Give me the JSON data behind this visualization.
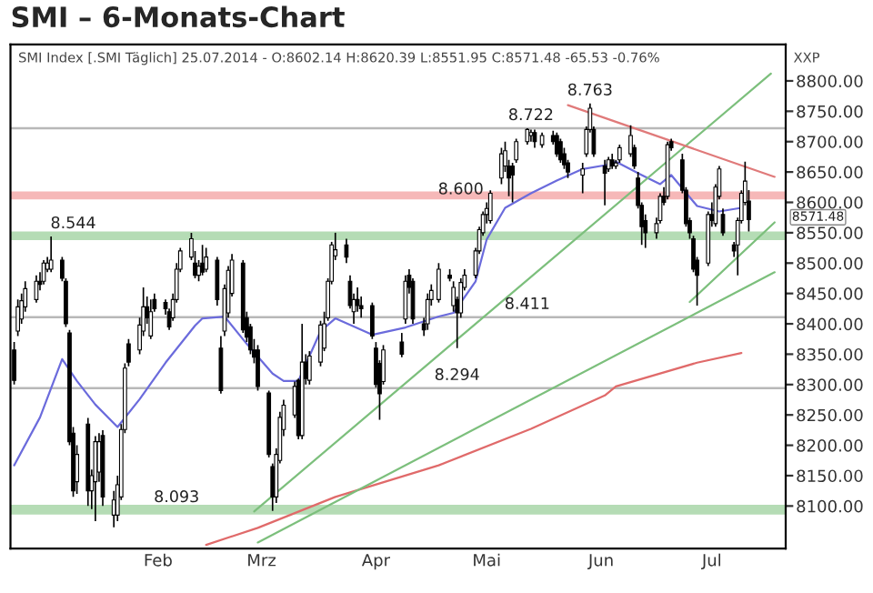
{
  "chart_data": {
    "type": "candlestick",
    "title": "SMI – 6-Monats-Chart",
    "x": [
      "2014-01-07",
      "2014-01-08",
      "2014-01-09",
      "2014-01-10",
      "2014-01-13",
      "2014-01-14",
      "2014-01-15",
      "2014-01-16",
      "2014-01-17",
      "2014-01-20",
      "2014-01-21",
      "2014-01-22",
      "2014-01-23",
      "2014-01-24",
      "2014-01-27",
      "2014-01-28",
      "2014-01-29",
      "2014-01-30",
      "2014-01-31",
      "2014-02-03",
      "2014-02-04",
      "2014-02-05",
      "2014-02-06",
      "2014-02-07",
      "2014-02-10",
      "2014-02-11",
      "2014-02-12",
      "2014-02-13",
      "2014-02-14",
      "2014-02-17",
      "2014-02-18",
      "2014-02-19",
      "2014-02-20",
      "2014-02-21",
      "2014-02-24",
      "2014-02-25",
      "2014-02-26",
      "2014-02-27",
      "2014-02-28",
      "2014-03-03",
      "2014-03-04",
      "2014-03-05",
      "2014-03-06",
      "2014-03-07",
      "2014-03-10",
      "2014-03-11",
      "2014-03-12",
      "2014-03-13",
      "2014-03-14",
      "2014-03-17",
      "2014-03-18",
      "2014-03-19",
      "2014-03-20",
      "2014-03-21",
      "2014-03-24",
      "2014-03-25",
      "2014-03-26",
      "2014-03-27",
      "2014-03-28",
      "2014-03-31",
      "2014-04-01",
      "2014-04-02",
      "2014-04-03",
      "2014-04-04",
      "2014-04-07",
      "2014-04-08",
      "2014-04-09",
      "2014-04-10",
      "2014-04-11",
      "2014-04-14",
      "2014-04-15",
      "2014-04-16",
      "2014-04-17",
      "2014-04-22",
      "2014-04-23",
      "2014-04-24",
      "2014-04-25",
      "2014-04-28",
      "2014-04-29",
      "2014-04-30",
      "2014-05-02",
      "2014-05-05",
      "2014-05-06",
      "2014-05-07",
      "2014-05-08",
      "2014-05-09",
      "2014-05-12",
      "2014-05-13",
      "2014-05-14",
      "2014-05-15",
      "2014-05-16",
      "2014-05-19",
      "2014-05-20",
      "2014-05-21",
      "2014-05-22",
      "2014-05-23",
      "2014-05-26",
      "2014-05-27",
      "2014-05-28",
      "2014-05-30",
      "2014-06-02",
      "2014-06-03",
      "2014-06-04",
      "2014-06-05",
      "2014-06-06",
      "2014-06-10",
      "2014-06-11",
      "2014-06-12",
      "2014-06-13",
      "2014-06-16",
      "2014-06-17",
      "2014-06-18",
      "2014-06-19",
      "2014-06-20",
      "2014-06-23",
      "2014-06-24",
      "2014-06-25",
      "2014-06-26",
      "2014-06-27",
      "2014-06-30",
      "2014-07-01",
      "2014-07-02",
      "2014-07-03",
      "2014-07-04",
      "2014-07-07",
      "2014-07-08",
      "2014-07-09",
      "2014-07-10",
      "2014-07-11",
      "2014-07-14",
      "2014-07-15",
      "2014-07-16",
      "2014-07-17",
      "2014-07-18",
      "2014-07-21",
      "2014-07-22",
      "2014-07-23",
      "2014-07-24",
      "2014-07-25"
    ],
    "ohlc": [
      [
        8357,
        8370,
        8300,
        8307
      ],
      [
        8388,
        8440,
        8380,
        8428
      ],
      [
        8408,
        8450,
        8400,
        8438
      ],
      [
        8428,
        8470,
        8420,
        8458
      ],
      [
        8440,
        8480,
        8435,
        8470
      ],
      [
        8470,
        8485,
        8455,
        8465
      ],
      [
        8470,
        8505,
        8465,
        8500
      ],
      [
        8490,
        8510,
        8485,
        8500
      ],
      [
        8490,
        8544,
        8485,
        8505
      ],
      [
        8505,
        8510,
        8470,
        8475
      ],
      [
        8470,
        8475,
        8395,
        8400
      ],
      [
        8385,
        8390,
        8200,
        8206
      ],
      [
        8220,
        8230,
        8115,
        8125
      ],
      [
        8140,
        8200,
        8120,
        8185
      ],
      [
        8235,
        8245,
        8100,
        8125
      ],
      [
        8125,
        8160,
        8095,
        8150
      ],
      [
        8140,
        8215,
        8075,
        8206
      ],
      [
        8156,
        8220,
        8140,
        8206
      ],
      [
        8216,
        8225,
        8100,
        8115
      ],
      [
        8085,
        8125,
        8065,
        8110
      ],
      [
        8085,
        8150,
        8075,
        8135
      ],
      [
        8115,
        8235,
        8110,
        8226
      ],
      [
        8226,
        8335,
        8220,
        8327
      ],
      [
        8367,
        8375,
        8330,
        8337
      ],
      [
        8357,
        8410,
        8350,
        8398
      ],
      [
        8388,
        8460,
        8380,
        8428
      ],
      [
        8428,
        8445,
        8400,
        8410
      ],
      [
        8380,
        8440,
        8375,
        8420
      ],
      [
        8440,
        8450,
        8420,
        8425
      ],
      [
        8435,
        8440,
        8415,
        8425
      ],
      [
        8420,
        8425,
        8390,
        8395
      ],
      [
        8410,
        8450,
        8405,
        8440
      ],
      [
        8440,
        8500,
        8435,
        8490
      ],
      [
        8490,
        8525,
        8485,
        8520
      ],
      [
        8510,
        8550,
        8505,
        8540
      ],
      [
        8500,
        8520,
        8475,
        8480
      ],
      [
        8480,
        8505,
        8470,
        8495
      ],
      [
        8500,
        8530,
        8480,
        8485
      ],
      [
        8490,
        8525,
        8485,
        8510
      ],
      [
        8505,
        8510,
        8430,
        8440
      ],
      [
        8360,
        8380,
        8285,
        8290
      ],
      [
        8388,
        8465,
        8380,
        8458
      ],
      [
        8418,
        8495,
        8410,
        8488
      ],
      [
        8450,
        8515,
        8445,
        8505
      ],
      [
        8500,
        8505,
        8385,
        8390
      ],
      [
        8410,
        8420,
        8370,
        8378
      ],
      [
        8395,
        8400,
        8350,
        8357
      ],
      [
        8357,
        8375,
        8335,
        8345
      ],
      [
        8357,
        8365,
        8290,
        8297
      ],
      [
        8286,
        8290,
        8180,
        8185
      ],
      [
        8165,
        8170,
        8092,
        8115
      ],
      [
        8115,
        8195,
        8105,
        8185
      ],
      [
        8175,
        8255,
        8170,
        8246
      ],
      [
        8226,
        8275,
        8215,
        8266
      ],
      [
        8250,
        8305,
        8245,
        8297
      ],
      [
        8307,
        8310,
        8210,
        8216
      ],
      [
        8216,
        8400,
        8210,
        8337
      ],
      [
        8337,
        8350,
        8300,
        8310
      ],
      [
        8307,
        8355,
        8300,
        8347
      ],
      [
        8337,
        8405,
        8330,
        8398
      ],
      [
        8360,
        8420,
        8355,
        8400
      ],
      [
        8410,
        8475,
        8405,
        8470
      ],
      [
        8470,
        8535,
        8465,
        8530
      ],
      [
        8512,
        8550,
        8505,
        8522
      ],
      [
        8530,
        8540,
        8500,
        8510
      ],
      [
        8470,
        8480,
        8425,
        8430
      ],
      [
        8420,
        8450,
        8400,
        8440
      ],
      [
        8440,
        8460,
        8420,
        8430
      ],
      [
        8430,
        8445,
        8410,
        8425
      ],
      [
        8430,
        8435,
        8375,
        8380
      ],
      [
        8360,
        8370,
        8295,
        8300
      ],
      [
        8335,
        8340,
        8242,
        8285
      ],
      [
        8305,
        8365,
        8300,
        8357
      ],
      [
        8370,
        8385,
        8345,
        8350
      ],
      [
        8408,
        8480,
        8400,
        8470
      ],
      [
        8480,
        8490,
        8450,
        8460
      ],
      [
        8470,
        8475,
        8400,
        8408
      ],
      [
        8400,
        8410,
        8380,
        8390
      ],
      [
        8400,
        8450,
        8390,
        8440
      ],
      [
        8440,
        8465,
        8430,
        8455
      ],
      [
        8440,
        8500,
        8435,
        8490
      ],
      [
        8480,
        8490,
        8470,
        8475
      ],
      [
        8430,
        8470,
        8420,
        8460
      ],
      [
        8440,
        8445,
        8360,
        8418
      ],
      [
        8418,
        8475,
        8410,
        8468
      ],
      [
        8460,
        8490,
        8455,
        8480
      ],
      [
        8480,
        8525,
        8475,
        8520
      ],
      [
        8520,
        8560,
        8515,
        8555
      ],
      [
        8550,
        8585,
        8545,
        8580
      ],
      [
        8580,
        8600,
        8565,
        8590
      ],
      [
        8570,
        8620,
        8565,
        8615
      ],
      [
        8640,
        8690,
        8630,
        8680
      ],
      [
        8660,
        8700,
        8650,
        8685
      ],
      [
        8660,
        8670,
        8610,
        8640
      ],
      [
        8660,
        8665,
        8600,
        8645
      ],
      [
        8670,
        8705,
        8665,
        8700
      ],
      [
        8700,
        8722,
        8695,
        8720
      ],
      [
        8710,
        8720,
        8700,
        8715
      ],
      [
        8715,
        8720,
        8690,
        8700
      ],
      [
        8695,
        8715,
        8690,
        8710
      ],
      [
        8710,
        8718,
        8695,
        8700
      ],
      [
        8710,
        8715,
        8675,
        8680
      ],
      [
        8700,
        8705,
        8665,
        8670
      ],
      [
        8680,
        8690,
        8655,
        8662
      ],
      [
        8665,
        8670,
        8640,
        8650
      ],
      [
        8645,
        8665,
        8615,
        8655
      ],
      [
        8680,
        8725,
        8675,
        8720
      ],
      [
        8720,
        8763,
        8715,
        8755
      ],
      [
        8720,
        8725,
        8675,
        8680
      ],
      [
        8660,
        8670,
        8595,
        8648
      ],
      [
        8655,
        8675,
        8650,
        8670
      ],
      [
        8670,
        8680,
        8655,
        8660
      ],
      [
        8660,
        8670,
        8655,
        8665
      ],
      [
        8670,
        8695,
        8665,
        8690
      ],
      [
        8680,
        8727,
        8675,
        8710
      ],
      [
        8690,
        8695,
        8655,
        8660
      ],
      [
        8640,
        8650,
        8590,
        8595
      ],
      [
        8595,
        8600,
        8530,
        8560
      ],
      [
        8570,
        8580,
        8525,
        8550
      ],
      [
        8550,
        8575,
        8540,
        8565
      ],
      [
        8570,
        8615,
        8565,
        8610
      ],
      [
        8610,
        8625,
        8595,
        8600
      ],
      [
        8610,
        8700,
        8605,
        8695
      ],
      [
        8700,
        8705,
        8685,
        8690
      ],
      [
        8670,
        8680,
        8615,
        8620
      ],
      [
        8620,
        8625,
        8560,
        8565
      ],
      [
        8570,
        8575,
        8540,
        8550
      ],
      [
        8540,
        8545,
        8485,
        8490
      ],
      [
        8505,
        8510,
        8430,
        8480
      ],
      [
        8500,
        8585,
        8495,
        8580
      ],
      [
        8580,
        8600,
        8560,
        8570
      ],
      [
        8565,
        8630,
        8560,
        8625
      ],
      [
        8610,
        8660,
        8605,
        8655
      ],
      [
        8580,
        8590,
        8545,
        8550
      ],
      [
        8530,
        8535,
        8510,
        8520
      ],
      [
        8530,
        8575,
        8480,
        8570
      ],
      [
        8570,
        8620,
        8565,
        8615
      ],
      [
        8600,
        8667,
        8595,
        8635
      ],
      [
        8602.14,
        8620.39,
        8551.95,
        8571.48
      ]
    ],
    "series": [
      {
        "type": "line",
        "color": "#6b6bdc",
        "x": [
          "2014-01-07",
          "2014-01-14",
          "2014-01-20",
          "2014-01-24",
          "2014-01-29",
          "2014-02-04",
          "2014-02-10",
          "2014-02-17",
          "2014-02-25",
          "2014-02-27",
          "2014-03-05",
          "2014-03-11",
          "2014-03-18",
          "2014-03-21",
          "2014-03-25",
          "2014-03-31",
          "2014-04-04",
          "2014-04-14",
          "2014-04-23",
          "2014-05-02",
          "2014-05-06",
          "2014-05-12",
          "2014-05-15",
          "2014-05-20",
          "2014-05-27",
          "2014-06-03",
          "2014-06-10",
          "2014-06-16",
          "2014-06-19",
          "2014-06-26",
          "2014-07-01",
          "2014-07-04",
          "2014-07-11",
          "2014-07-17",
          "2014-07-23"
        ],
        "values": [
          8167,
          8246,
          8342,
          8306,
          8267,
          8230,
          8276,
          8336,
          8397,
          8409,
          8412,
          8367,
          8318,
          8306,
          8306,
          8388,
          8409,
          8382,
          8394,
          8412,
          8418,
          8470,
          8539,
          8591,
          8615,
          8636,
          8655,
          8661,
          8667,
          8645,
          8630,
          8645,
          8594,
          8585,
          8591
        ]
      },
      {
        "type": "line",
        "color": "#e06a6a",
        "x": [
          "2014-02-28",
          "2014-03-14",
          "2014-04-04",
          "2014-05-02",
          "2014-05-27",
          "2014-06-16",
          "2014-06-19",
          "2014-07-11",
          "2014-07-23"
        ],
        "values": [
          8036,
          8064,
          8115,
          8167,
          8227,
          8282,
          8297,
          8336,
          8352
        ]
      },
      {
        "type": "line",
        "color": "#7cbf7c",
        "x": [
          "2014-03-13",
          "2014-07-31"
        ],
        "values": [
          8091,
          8812
        ]
      },
      {
        "type": "line",
        "color": "#7cbf7c",
        "x": [
          "2014-03-14",
          "2014-08-01"
        ],
        "values": [
          8040,
          8485
        ]
      },
      {
        "type": "line",
        "color": "#7cbf7c",
        "x": [
          "2014-07-09",
          "2014-08-01"
        ],
        "values": [
          8436,
          8567
        ]
      },
      {
        "type": "line",
        "color": "#e07a7a",
        "x": [
          "2014-06-06",
          "2014-08-01"
        ],
        "values": [
          8760,
          8642
        ]
      }
    ],
    "xlim": [
      "2014-01-06",
      "2014-08-04"
    ],
    "xticks": [
      {
        "value": "2014-02-15",
        "label": "Feb"
      },
      {
        "value": "2014-03-15",
        "label": "Mrz"
      },
      {
        "value": "2014-04-15",
        "label": "Apr"
      },
      {
        "value": "2014-05-15",
        "label": "Mai"
      },
      {
        "value": "2014-06-15",
        "label": "Jun"
      },
      {
        "value": "2014-07-15",
        "label": "Jul"
      }
    ],
    "ylim": [
      8030,
      8860
    ],
    "yticks": [
      {
        "value": 8100,
        "label": "8100.00"
      },
      {
        "value": 8150,
        "label": "8150.00"
      },
      {
        "value": 8200,
        "label": "8200.00"
      },
      {
        "value": 8250,
        "label": "8250.00"
      },
      {
        "value": 8300,
        "label": "8300.00"
      },
      {
        "value": 8350,
        "label": "8350.00"
      },
      {
        "value": 8400,
        "label": "8400.00"
      },
      {
        "value": 8450,
        "label": "8450.00"
      },
      {
        "value": 8500,
        "label": "8500.00"
      },
      {
        "value": 8550,
        "label": "8550.00"
      },
      {
        "value": 8600,
        "label": "8600.00"
      },
      {
        "value": 8650,
        "label": "8650.00"
      },
      {
        "value": 8700,
        "label": "8700.00"
      },
      {
        "value": 8750,
        "label": "8750.00"
      },
      {
        "value": 8800,
        "label": "8800.00"
      }
    ],
    "bands": [
      {
        "axis": "y",
        "from": 8538,
        "to": 8552,
        "color": "#b5dcb5"
      },
      {
        "axis": "y",
        "from": 8086,
        "to": 8102,
        "color": "#b5dcb5"
      },
      {
        "axis": "y",
        "from": 8605,
        "to": 8618,
        "color": "#f6b8b8"
      }
    ],
    "ref_lines": [
      {
        "axis": "y",
        "value": 8722,
        "color": "#b8b8b8"
      },
      {
        "axis": "y",
        "value": 8411,
        "color": "#b8b8b8"
      },
      {
        "axis": "y",
        "value": 8294,
        "color": "#b8b8b8"
      }
    ],
    "annotations": [
      "SMI Index [.SMI Täglich] 25.07.2014 - O:8602.14 H:8620.39 L:8551.95 C:8571.48 -65.53 -0.76%",
      "XXP",
      "8571.48",
      {
        "text": "8.763",
        "x": "2014-06-12",
        "y": 8763
      },
      {
        "text": "8.722",
        "x": "2014-05-27",
        "y": 8722
      },
      {
        "text": "8.600",
        "x": "2014-05-08",
        "y": 8600
      },
      {
        "text": "8.544",
        "x": "2014-01-23",
        "y": 8544
      },
      {
        "text": "8.411",
        "x": "2014-05-26",
        "y": 8411
      },
      {
        "text": "8.294",
        "x": "2014-05-07",
        "y": 8294
      },
      {
        "text": "8.093",
        "x": "2014-02-20",
        "y": 8093
      }
    ],
    "grid": false
  }
}
